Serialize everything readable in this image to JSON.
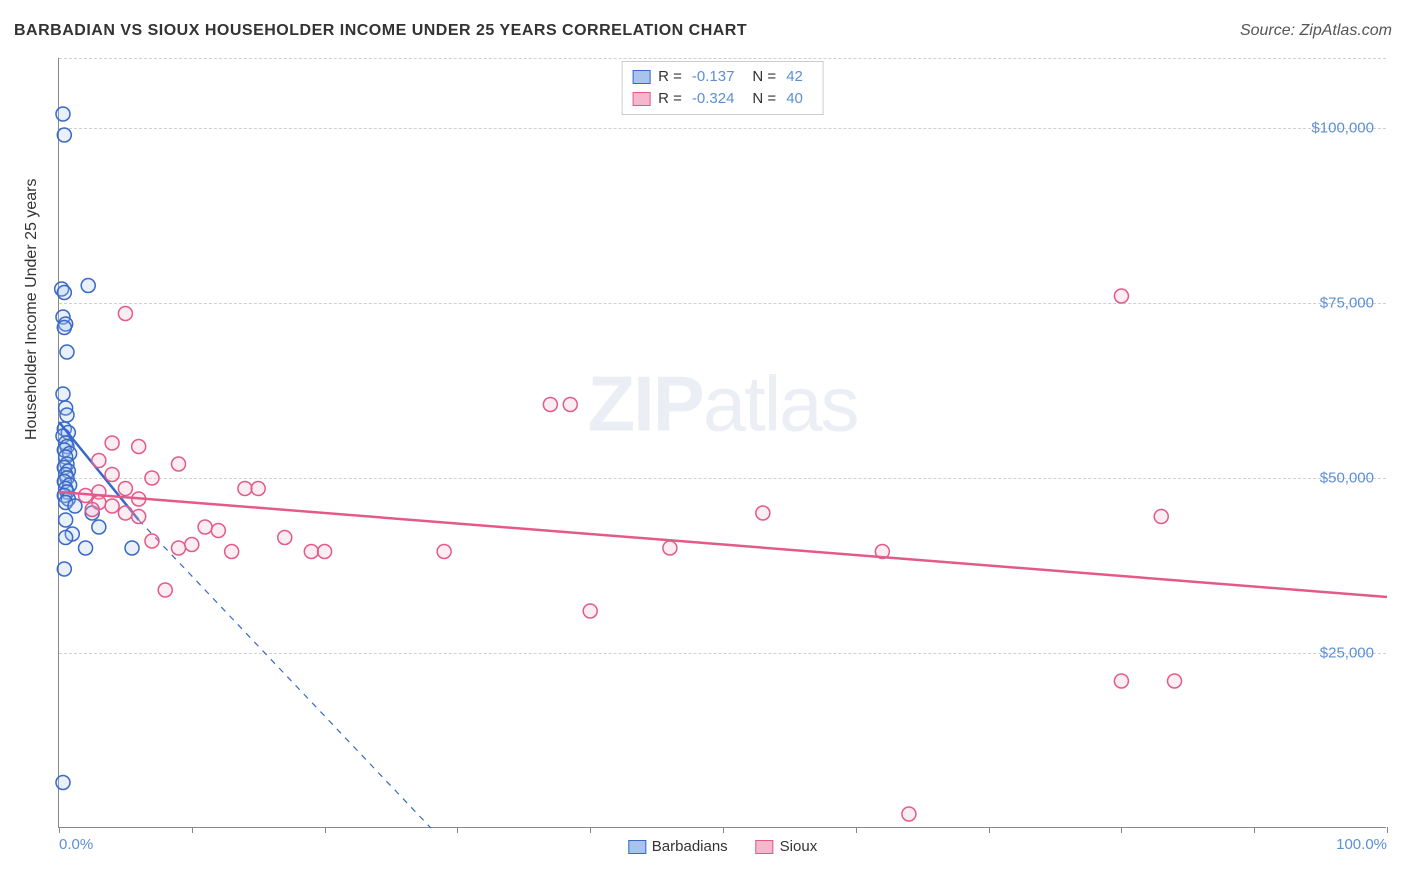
{
  "header": {
    "title": "BARBADIAN VS SIOUX HOUSEHOLDER INCOME UNDER 25 YEARS CORRELATION CHART",
    "source": "Source: ZipAtlas.com"
  },
  "chart": {
    "type": "scatter",
    "ylabel": "Householder Income Under 25 years",
    "xlim": [
      0,
      100
    ],
    "ylim": [
      0,
      110000
    ],
    "xticks": [
      0,
      10,
      20,
      30,
      40,
      50,
      60,
      70,
      80,
      90,
      100
    ],
    "xtick_labels": {
      "0": "0.0%",
      "100": "100.0%"
    },
    "yticks": [
      25000,
      50000,
      75000,
      100000
    ],
    "ytick_labels": [
      "$25,000",
      "$50,000",
      "$75,000",
      "$100,000"
    ],
    "background_color": "#ffffff",
    "grid_color": "#d0d0d0",
    "axis_color": "#888888",
    "tick_label_color": "#5b8fd6",
    "marker_radius": 7,
    "marker_stroke_width": 1.5,
    "marker_fill_opacity": 0.25,
    "trend_line_width": 2.5,
    "trend_dash_width": 1.2,
    "watermark": "ZIPatlas",
    "series": [
      {
        "name": "Barbadians",
        "color_stroke": "#3868c8",
        "color_fill": "#a9c3ec",
        "R": "-0.137",
        "N": "42",
        "trend_solid": {
          "x1": 0,
          "y1": 58000,
          "x2": 6,
          "y2": 44000
        },
        "trend_dash": {
          "x1": 6,
          "y1": 44000,
          "x2": 28,
          "y2": 0
        },
        "points": [
          [
            0.3,
            102000
          ],
          [
            0.4,
            99000
          ],
          [
            0.2,
            77000
          ],
          [
            0.4,
            76500
          ],
          [
            2.2,
            77500
          ],
          [
            0.3,
            73000
          ],
          [
            0.5,
            72000
          ],
          [
            0.4,
            71500
          ],
          [
            0.6,
            68000
          ],
          [
            0.3,
            62000
          ],
          [
            0.5,
            60000
          ],
          [
            0.6,
            59000
          ],
          [
            0.4,
            57000
          ],
          [
            0.7,
            56500
          ],
          [
            0.3,
            56000
          ],
          [
            0.5,
            55000
          ],
          [
            0.6,
            54500
          ],
          [
            0.4,
            54000
          ],
          [
            0.8,
            53500
          ],
          [
            0.5,
            53000
          ],
          [
            0.6,
            52000
          ],
          [
            0.4,
            51500
          ],
          [
            0.7,
            51000
          ],
          [
            0.5,
            50500
          ],
          [
            0.6,
            50000
          ],
          [
            0.4,
            49500
          ],
          [
            0.8,
            49000
          ],
          [
            0.5,
            48500
          ],
          [
            0.6,
            48000
          ],
          [
            0.4,
            47500
          ],
          [
            0.7,
            47000
          ],
          [
            0.5,
            46500
          ],
          [
            1.2,
            46000
          ],
          [
            2.5,
            45000
          ],
          [
            3.0,
            43000
          ],
          [
            1.0,
            42000
          ],
          [
            0.5,
            41500
          ],
          [
            2.0,
            40000
          ],
          [
            5.5,
            40000
          ],
          [
            0.4,
            37000
          ],
          [
            0.3,
            6500
          ],
          [
            0.5,
            44000
          ]
        ]
      },
      {
        "name": "Sioux",
        "color_stroke": "#e35a8a",
        "color_fill": "#f4b7cc",
        "R": "-0.324",
        "N": "40",
        "trend_solid": {
          "x1": 0,
          "y1": 48000,
          "x2": 100,
          "y2": 33000
        },
        "trend_dash": null,
        "points": [
          [
            5,
            73500
          ],
          [
            80,
            76000
          ],
          [
            37,
            60500
          ],
          [
            38.5,
            60500
          ],
          [
            4,
            55000
          ],
          [
            6,
            54500
          ],
          [
            9,
            52000
          ],
          [
            4,
            50500
          ],
          [
            7,
            50000
          ],
          [
            5,
            48500
          ],
          [
            14,
            48500
          ],
          [
            15,
            48500
          ],
          [
            3,
            48000
          ],
          [
            2,
            47500
          ],
          [
            6,
            47000
          ],
          [
            3,
            46500
          ],
          [
            4,
            46000
          ],
          [
            2.5,
            45500
          ],
          [
            5,
            45000
          ],
          [
            6,
            44500
          ],
          [
            53,
            45000
          ],
          [
            83,
            44500
          ],
          [
            11,
            43000
          ],
          [
            12,
            42500
          ],
          [
            17,
            41500
          ],
          [
            7,
            41000
          ],
          [
            10,
            40500
          ],
          [
            9,
            40000
          ],
          [
            13,
            39500
          ],
          [
            46,
            40000
          ],
          [
            62,
            39500
          ],
          [
            29,
            39500
          ],
          [
            19,
            39500
          ],
          [
            20,
            39500
          ],
          [
            40,
            31000
          ],
          [
            8,
            34000
          ],
          [
            80,
            21000
          ],
          [
            84,
            21000
          ],
          [
            64,
            2000
          ],
          [
            3,
            52500
          ]
        ]
      }
    ],
    "bottom_legend": [
      {
        "label": "Barbadians",
        "stroke": "#3868c8",
        "fill": "#a9c3ec"
      },
      {
        "label": "Sioux",
        "stroke": "#e35a8a",
        "fill": "#f4b7cc"
      }
    ]
  }
}
